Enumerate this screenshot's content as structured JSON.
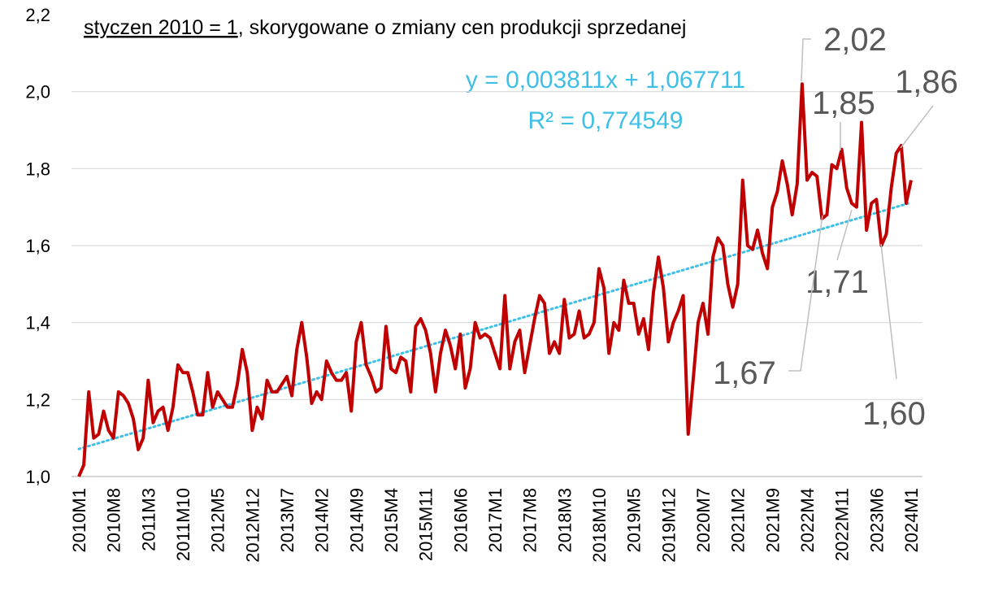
{
  "chart_data": {
    "type": "line",
    "title": [
      "styczen 2010 = 1",
      ", skorygowane o zmiany cen produkcji sprzedanej"
    ],
    "categories": [
      "2010M1",
      null,
      null,
      null,
      null,
      null,
      null,
      "2010M8",
      null,
      null,
      null,
      null,
      null,
      null,
      "2011M3",
      null,
      null,
      null,
      null,
      null,
      null,
      "2011M10",
      null,
      null,
      null,
      null,
      null,
      null,
      "2012M5",
      null,
      null,
      null,
      null,
      null,
      null,
      "2012M12",
      null,
      null,
      null,
      null,
      null,
      null,
      "2013M7",
      null,
      null,
      null,
      null,
      null,
      null,
      "2014M2",
      null,
      null,
      null,
      null,
      null,
      null,
      "2014M9",
      null,
      null,
      null,
      null,
      null,
      null,
      "2015M4",
      null,
      null,
      null,
      null,
      null,
      null,
      "2015M11",
      null,
      null,
      null,
      null,
      null,
      null,
      "2016M6",
      null,
      null,
      null,
      null,
      null,
      null,
      "2017M1",
      null,
      null,
      null,
      null,
      null,
      null,
      "2017M8",
      null,
      null,
      null,
      null,
      null,
      null,
      "2018M3",
      null,
      null,
      null,
      null,
      null,
      null,
      "2018M10",
      null,
      null,
      null,
      null,
      null,
      null,
      "2019M5",
      null,
      null,
      null,
      null,
      null,
      null,
      "2019M12",
      null,
      null,
      null,
      null,
      null,
      null,
      "2020M7",
      null,
      null,
      null,
      null,
      null,
      null,
      "2021M2",
      null,
      null,
      null,
      null,
      null,
      null,
      "2021M9",
      null,
      null,
      null,
      null,
      null,
      null,
      "2022M4",
      null,
      null,
      null,
      null,
      null,
      null,
      "2022M11",
      null,
      null,
      null,
      null,
      null,
      null,
      "2023M6",
      null,
      null,
      null,
      null,
      null,
      null,
      "2024M1"
    ],
    "values": [
      1.0,
      1.03,
      1.22,
      1.1,
      1.11,
      1.17,
      1.12,
      1.1,
      1.22,
      1.21,
      1.19,
      1.15,
      1.07,
      1.1,
      1.25,
      1.14,
      1.17,
      1.18,
      1.12,
      1.18,
      1.29,
      1.27,
      1.27,
      1.22,
      1.16,
      1.16,
      1.27,
      1.18,
      1.22,
      1.2,
      1.18,
      1.18,
      1.24,
      1.33,
      1.27,
      1.12,
      1.18,
      1.15,
      1.25,
      1.22,
      1.22,
      1.24,
      1.26,
      1.21,
      1.33,
      1.4,
      1.31,
      1.19,
      1.22,
      1.2,
      1.3,
      1.27,
      1.25,
      1.25,
      1.27,
      1.17,
      1.35,
      1.4,
      1.29,
      1.26,
      1.22,
      1.23,
      1.39,
      1.28,
      1.27,
      1.31,
      1.3,
      1.22,
      1.39,
      1.41,
      1.38,
      1.32,
      1.22,
      1.32,
      1.38,
      1.34,
      1.28,
      1.37,
      1.23,
      1.28,
      1.4,
      1.36,
      1.37,
      1.36,
      1.32,
      1.28,
      1.47,
      1.28,
      1.35,
      1.38,
      1.27,
      1.34,
      1.41,
      1.47,
      1.45,
      1.32,
      1.35,
      1.32,
      1.46,
      1.36,
      1.37,
      1.43,
      1.36,
      1.37,
      1.4,
      1.54,
      1.49,
      1.32,
      1.4,
      1.38,
      1.51,
      1.45,
      1.45,
      1.37,
      1.41,
      1.33,
      1.48,
      1.57,
      1.49,
      1.35,
      1.4,
      1.43,
      1.47,
      1.11,
      1.25,
      1.4,
      1.45,
      1.37,
      1.57,
      1.62,
      1.6,
      1.5,
      1.44,
      1.5,
      1.77,
      1.6,
      1.59,
      1.64,
      1.58,
      1.54,
      1.7,
      1.74,
      1.82,
      1.76,
      1.68,
      1.76,
      2.02,
      1.77,
      1.79,
      1.78,
      1.67,
      1.68,
      1.81,
      1.8,
      1.85,
      1.75,
      1.71,
      1.7,
      1.92,
      1.64,
      1.71,
      1.72,
      1.6,
      1.63,
      1.75,
      1.84,
      1.86,
      1.71,
      1.77
    ],
    "color": "#c00000",
    "ylim": [
      1.0,
      2.2
    ],
    "yticks": [
      {
        "value": 1.0,
        "label": "1,0"
      },
      {
        "value": 1.2,
        "label": "1,2"
      },
      {
        "value": 1.4,
        "label": "1,4"
      },
      {
        "value": 1.6,
        "label": "1,6"
      },
      {
        "value": 1.8,
        "label": "1,8"
      },
      {
        "value": 2.0,
        "label": "2,0"
      },
      {
        "value": 2.2,
        "label": "2,2"
      }
    ],
    "grid": true,
    "trendline": {
      "slope": 0.003811,
      "intercept": 1.067711,
      "color": "#3fbfe6",
      "label": "y = 0,003811x + 1,067711",
      "r2_label": "R² = 0,774549"
    },
    "annotations": [
      {
        "value": 2.02,
        "label": "2,02"
      },
      {
        "value": 1.85,
        "label": "1,85"
      },
      {
        "value": 1.86,
        "label": "1,86"
      },
      {
        "value": 1.71,
        "label": "1,71"
      },
      {
        "value": 1.67,
        "label": "1,67"
      },
      {
        "value": 1.6,
        "label": "1,60"
      }
    ]
  }
}
